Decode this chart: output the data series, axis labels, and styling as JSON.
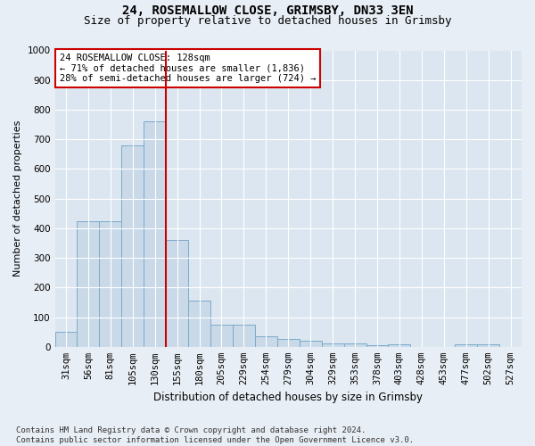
{
  "title1": "24, ROSEMALLOW CLOSE, GRIMSBY, DN33 3EN",
  "title2": "Size of property relative to detached houses in Grimsby",
  "xlabel": "Distribution of detached houses by size in Grimsby",
  "ylabel": "Number of detached properties",
  "bar_labels": [
    "31sqm",
    "56sqm",
    "81sqm",
    "105sqm",
    "130sqm",
    "155sqm",
    "180sqm",
    "205sqm",
    "229sqm",
    "254sqm",
    "279sqm",
    "304sqm",
    "329sqm",
    "353sqm",
    "378sqm",
    "403sqm",
    "428sqm",
    "453sqm",
    "477sqm",
    "502sqm",
    "527sqm"
  ],
  "bar_values": [
    50,
    425,
    425,
    680,
    760,
    360,
    155,
    75,
    75,
    35,
    25,
    20,
    12,
    12,
    5,
    8,
    0,
    0,
    8,
    8,
    0
  ],
  "bar_color": "#c9d9e8",
  "bar_edge_color": "#7baac9",
  "vline_color": "#cc0000",
  "vline_x_index": 4,
  "annotation_text": "24 ROSEMALLOW CLOSE: 128sqm\n← 71% of detached houses are smaller (1,836)\n28% of semi-detached houses are larger (724) →",
  "annotation_box_edge_color": "#cc0000",
  "ylim": [
    0,
    1000
  ],
  "yticks": [
    0,
    100,
    200,
    300,
    400,
    500,
    600,
    700,
    800,
    900,
    1000
  ],
  "bg_color": "#e8eef5",
  "plot_bg_color": "#dce6f0",
  "grid_color": "#ffffff",
  "footnote": "Contains HM Land Registry data © Crown copyright and database right 2024.\nContains public sector information licensed under the Open Government Licence v3.0.",
  "title1_fontsize": 10,
  "title2_fontsize": 9,
  "xlabel_fontsize": 8.5,
  "ylabel_fontsize": 8,
  "tick_fontsize": 7.5,
  "annotation_fontsize": 7.5,
  "footnote_fontsize": 6.5
}
